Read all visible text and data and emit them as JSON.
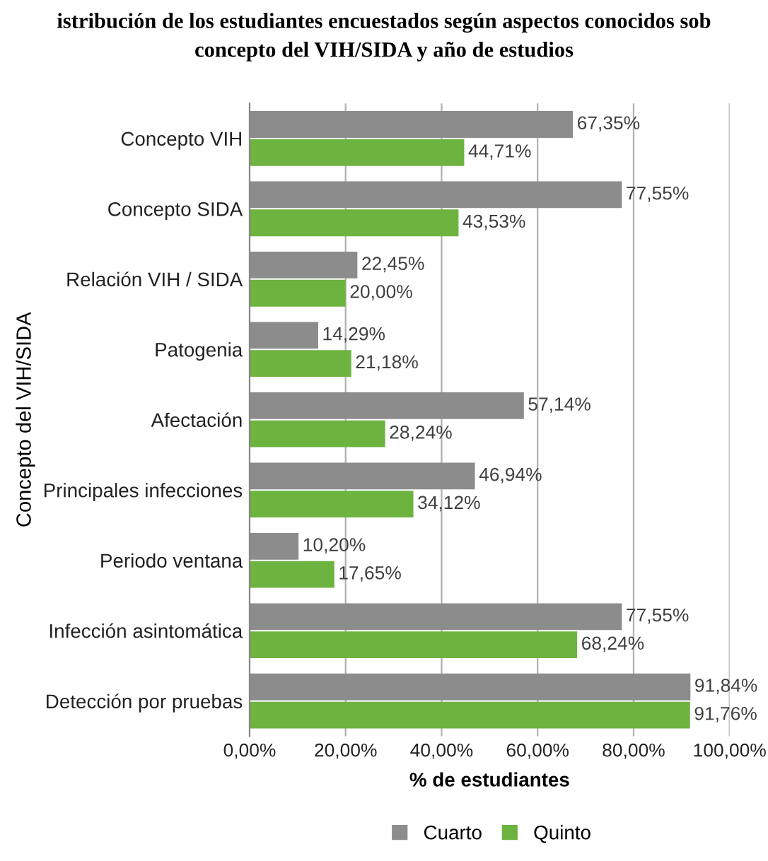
{
  "chart_data": {
    "type": "bar",
    "orientation": "horizontal",
    "title": "istribución de los estudiantes encuestados según aspectos conocidos sob\nconcepto del VIH/SIDA y año de estudios",
    "xlabel": "% de estudiantes",
    "ylabel": "Concepto del VIH/SIDA",
    "categories": [
      "Concepto VIH",
      "Concepto SIDA",
      "Relación VIH / SIDA",
      "Patogenia",
      "Afectación",
      "Principales infecciones",
      "Periodo ventana",
      "Infección asintomática",
      "Detección por pruebas"
    ],
    "series": [
      {
        "name": "Cuarto",
        "color": "#8c8c8c",
        "values": [
          67.35,
          77.55,
          22.45,
          14.29,
          57.14,
          46.94,
          10.2,
          77.55,
          91.84
        ],
        "value_labels": [
          "67,35%",
          "77,55%",
          "22,45%",
          "14,29%",
          "57,14%",
          "46,94%",
          "10,20%",
          "77,55%",
          "91,84%"
        ]
      },
      {
        "name": "Quinto",
        "color": "#6db33f",
        "values": [
          44.71,
          43.53,
          20.0,
          21.18,
          28.24,
          34.12,
          17.65,
          68.24,
          91.76
        ],
        "value_labels": [
          "44,71%",
          "43,53%",
          "20,00%",
          "21,18%",
          "28,24%",
          "34,12%",
          "17,65%",
          "68,24%",
          "91,76%"
        ]
      }
    ],
    "xlim": [
      0,
      100
    ],
    "xticks": [
      {
        "value": 0,
        "label": "0,00%"
      },
      {
        "value": 20,
        "label": "20,00%"
      },
      {
        "value": 40,
        "label": "40,00%"
      },
      {
        "value": 60,
        "label": "60,00%"
      },
      {
        "value": 80,
        "label": "80,00%"
      },
      {
        "value": 100,
        "label": "100,00%"
      }
    ],
    "grid": "x",
    "legend": "bottom"
  }
}
